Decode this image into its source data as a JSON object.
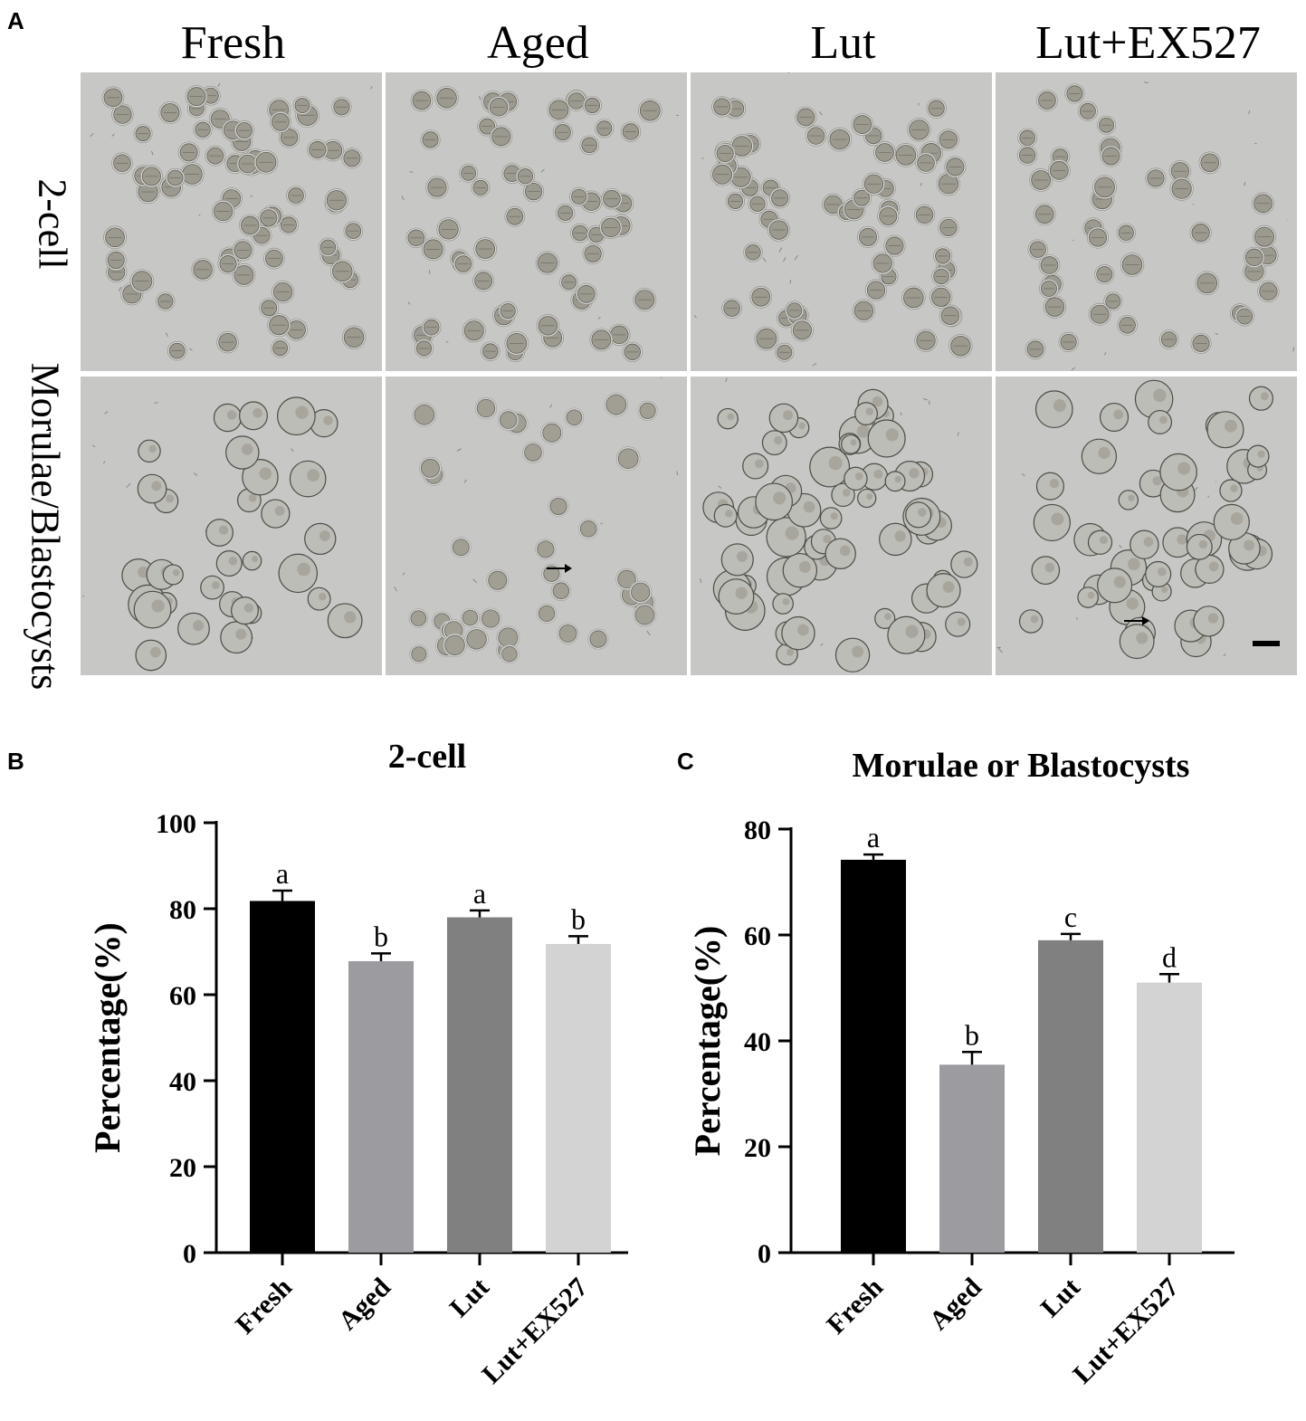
{
  "panel_labels": {
    "a": "A",
    "b": "B",
    "c": "C"
  },
  "image_grid": {
    "columns": [
      "Fresh",
      "Aged",
      "Lut",
      "Lut+EX527"
    ],
    "rows": [
      "2-cell",
      "Morulae/Blastocysts"
    ]
  },
  "chart_data": [
    {
      "type": "bar",
      "title": "2-cell",
      "categories": [
        "Fresh",
        "Aged",
        "Lut",
        "Lut+EX527"
      ],
      "values": [
        81.8,
        67.8,
        78.0,
        71.8
      ],
      "errors": [
        2.4,
        1.8,
        1.6,
        1.8
      ],
      "significance": [
        "a",
        "b",
        "a",
        "b"
      ],
      "bar_colors": [
        "#000000",
        "#9b9ba0",
        "#808080",
        "#d3d3d3"
      ],
      "xlabel": "",
      "ylabel": "Percentage(%)",
      "ylim": [
        0,
        100
      ],
      "yticks": [
        0,
        20,
        40,
        60,
        80,
        100
      ],
      "grid": false
    },
    {
      "type": "bar",
      "title": "Morulae or Blastocysts",
      "categories": [
        "Fresh",
        "Aged",
        "Lut",
        "Lut+EX527"
      ],
      "values": [
        74.2,
        35.5,
        59.0,
        51.0
      ],
      "errors": [
        1.0,
        2.4,
        1.2,
        1.6
      ],
      "significance": [
        "a",
        "b",
        "c",
        "d"
      ],
      "bar_colors": [
        "#000000",
        "#9b9ba0",
        "#808080",
        "#d3d3d3"
      ],
      "xlabel": "",
      "ylabel": "Percentage(%)",
      "ylim": [
        0,
        80
      ],
      "yticks": [
        0,
        20,
        40,
        60,
        80
      ],
      "grid": false
    }
  ]
}
